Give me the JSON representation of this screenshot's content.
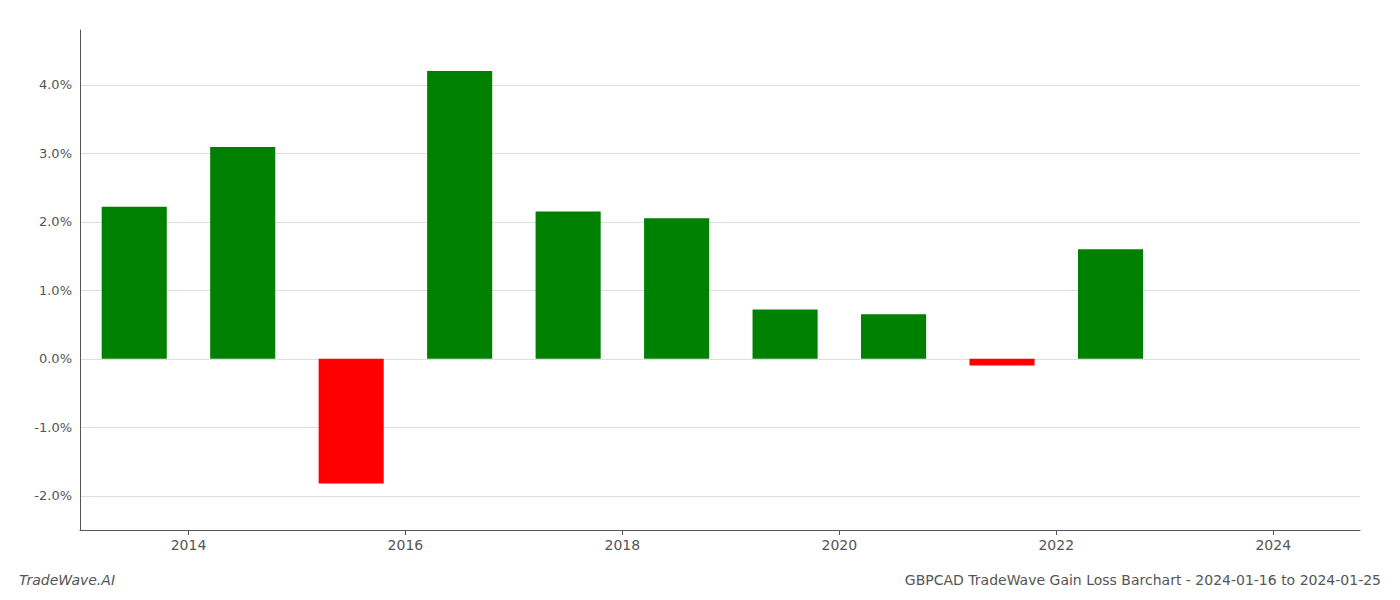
{
  "chart_data": {
    "type": "bar",
    "title": "GBPCAD TradeWave Gain Loss Barchart - 2024-01-16 to 2024-01-25",
    "annotations": [
      "TradeWave.AI"
    ],
    "x": [
      2013.5,
      2014.5,
      2015.5,
      2016.5,
      2017.5,
      2018.5,
      2019.5,
      2020.5,
      2021.5,
      2022.5
    ],
    "values": [
      0.0222,
      0.0309,
      -0.0182,
      0.042,
      0.0215,
      0.0205,
      0.0072,
      0.0065,
      -0.001,
      0.016
    ],
    "colors": [
      "#008000",
      "#008000",
      "#ff0000",
      "#008000",
      "#008000",
      "#008000",
      "#008000",
      "#008000",
      "#ff0000",
      "#008000"
    ],
    "xlim": [
      2013.0,
      2024.8
    ],
    "xticks": [
      2014,
      2016,
      2018,
      2020,
      2022,
      2024
    ],
    "ylim": [
      -0.025,
      0.048
    ],
    "yticks": [
      {
        "value": -0.02,
        "label": "-2.0%"
      },
      {
        "value": -0.01,
        "label": "-1.0%"
      },
      {
        "value": 0.0,
        "label": "0.0%"
      },
      {
        "value": 0.01,
        "label": "1.0%"
      },
      {
        "value": 0.02,
        "label": "2.0%"
      },
      {
        "value": 0.03,
        "label": "3.0%"
      },
      {
        "value": 0.04,
        "label": "4.0%"
      }
    ],
    "grid": true
  }
}
